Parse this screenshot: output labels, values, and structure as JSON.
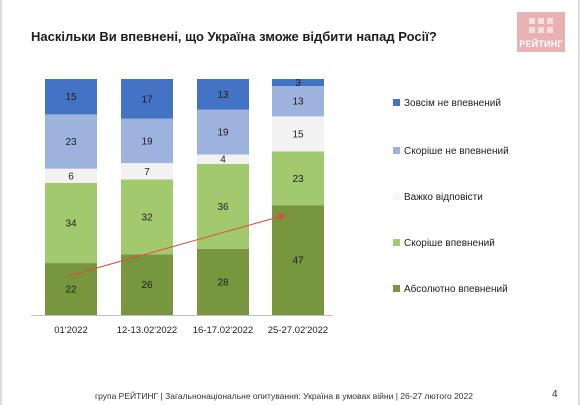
{
  "title": "Наскільки Ви впевнені, що Україна зможе відбити напад Росії?",
  "logo_text": "РЕЙТИНГ",
  "footer": "група РЕЙТИНГ | Загальнонаціональне опитування: Україна в умовах війни | 26-27 лютого 2022",
  "page_number": "4",
  "colors": {
    "not_at_all": "#4472c4",
    "rather_not": "#9db3de",
    "hard_to_say": "#f2f2f2",
    "rather_yes": "#a2c96d",
    "absolutely": "#77963e",
    "trend_arrow": "#e34b3f"
  },
  "chart_data": {
    "type": "bar",
    "stacked": true,
    "title": "Наскільки Ви впевнені, що Україна зможе відбити напад Росії?",
    "categories": [
      "01'2022",
      "12-13.02'2022",
      "16-17.02'2022",
      "25-27.02'2022"
    ],
    "ylim": [
      0,
      100
    ],
    "grid": false,
    "legend_position": "right",
    "series": [
      {
        "name": "Абсолютно впевнений",
        "values": [
          22,
          26,
          28,
          47
        ],
        "color": "#77963e"
      },
      {
        "name": "Скоріше впевнений",
        "values": [
          34,
          32,
          36,
          23
        ],
        "color": "#a2c96d"
      },
      {
        "name": "Важко відповісти",
        "values": [
          6,
          7,
          4,
          15
        ],
        "color": "#f2f2f2"
      },
      {
        "name": "Скоріше не впевнений",
        "values": [
          23,
          19,
          19,
          13
        ],
        "color": "#9db3de"
      },
      {
        "name": "Зовсім не впевнений",
        "values": [
          15,
          17,
          13,
          3
        ],
        "color": "#4472c4"
      }
    ],
    "legend_order": [
      "Зовсім не впевнений",
      "Скоріше не впевнений",
      "Важко відповісти",
      "Скоріше впевнений",
      "Абсолютно впевнений"
    ],
    "annotation": {
      "type": "trend-arrow",
      "from_category": "01'2022",
      "to_category": "25-27.02'2022",
      "series": "Абсолютно впевнений"
    }
  }
}
